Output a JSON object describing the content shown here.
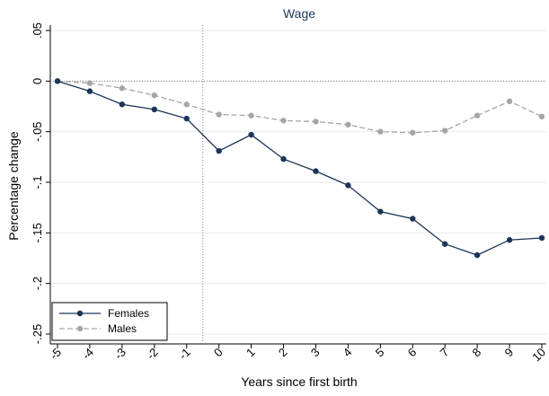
{
  "chart_data": {
    "type": "line",
    "title": "Wage",
    "xlabel": "Years since first birth",
    "ylabel": "Percentage change",
    "x": [
      -5,
      -4,
      -3,
      -2,
      -1,
      0,
      1,
      2,
      3,
      4,
      5,
      6,
      7,
      8,
      9,
      10
    ],
    "xticks": [
      "-5",
      "-4",
      "-3",
      "-2",
      "-1",
      "0",
      "1",
      "2",
      "3",
      "4",
      "5",
      "6",
      "7",
      "8",
      "9",
      "10"
    ],
    "yticks": [
      0.05,
      0,
      -0.05,
      -0.1,
      -0.15,
      -0.2,
      -0.25
    ],
    "ytick_labels": [
      ".05",
      "0",
      "-.05",
      "-.1",
      "-.15",
      "-.2",
      "-.25"
    ],
    "xlim": [
      -5,
      10
    ],
    "ylim": [
      -0.25,
      0.05
    ],
    "reference_lines": {
      "x": -0.5,
      "y": 0
    },
    "grid": true,
    "legend_position": "bottom-left",
    "series": [
      {
        "name": "Females",
        "color": "#1a3556",
        "line_style": "solid",
        "values": [
          0,
          -0.01,
          -0.023,
          -0.028,
          -0.037,
          -0.069,
          -0.053,
          -0.077,
          -0.089,
          -0.103,
          -0.129,
          -0.136,
          -0.161,
          -0.172,
          -0.157,
          -0.155
        ]
      },
      {
        "name": "Males",
        "color": "#a6a6a6",
        "line_style": "dashed",
        "values": [
          0,
          -0.002,
          -0.007,
          -0.014,
          -0.023,
          -0.033,
          -0.034,
          -0.039,
          -0.04,
          -0.043,
          -0.05,
          -0.051,
          -0.049,
          -0.034,
          -0.02,
          -0.035
        ]
      }
    ],
    "colors": {
      "title": "#1a3556",
      "grid": "#eaeaea",
      "axis": "#000000"
    }
  }
}
